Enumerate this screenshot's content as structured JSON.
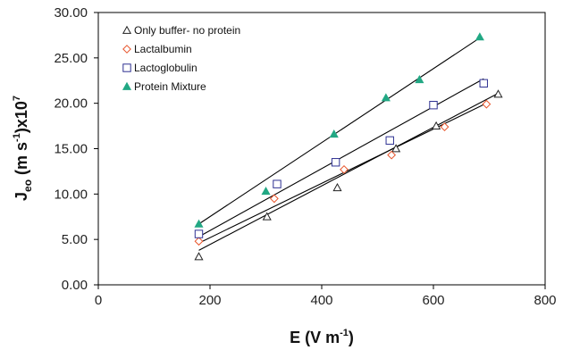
{
  "chart_data": {
    "type": "scatter",
    "xlabel": {
      "main": "E (V m",
      "sup": "-1",
      "tail": ")"
    },
    "ylabel": {
      "j": "J",
      "sub": "eo",
      "mid": " (m s",
      "sup1": "-1",
      "tail": ")x10",
      "sup2": "7"
    },
    "xlim": [
      0,
      800
    ],
    "ylim": [
      0,
      30
    ],
    "x_ticks": [
      0,
      200,
      400,
      600,
      800
    ],
    "x_tick_labels": [
      "0",
      "200",
      "400",
      "600",
      "800"
    ],
    "y_ticks": [
      0,
      5,
      10,
      15,
      20,
      25,
      30
    ],
    "y_tick_labels": [
      "0.00",
      "5.00",
      "10.00",
      "15.00",
      "20.00",
      "25.00",
      "30.00"
    ],
    "grid": false,
    "legend_position": "top-left",
    "series": [
      {
        "name": "Only buffer- no protein",
        "marker": "triangle-open",
        "color": "#222222",
        "x": [
          180,
          302,
          428,
          533,
          605,
          716
        ],
        "y": [
          3.1,
          7.5,
          10.7,
          15.0,
          17.5,
          21.0
        ],
        "fit": [
          [
            180,
            3.8
          ],
          [
            716,
            21.1
          ]
        ]
      },
      {
        "name": "Lactalbumin",
        "marker": "diamond-open",
        "color": "#e8542a",
        "x": [
          180,
          315,
          440,
          525,
          620,
          695
        ],
        "y": [
          4.8,
          9.5,
          12.7,
          14.3,
          17.4,
          19.9
        ],
        "fit": [
          [
            180,
            4.6
          ],
          [
            695,
            20.0
          ]
        ]
      },
      {
        "name": "Lactoglobulin",
        "marker": "square-open",
        "color": "#2e3192",
        "x": [
          180,
          320,
          425,
          522,
          600,
          690
        ],
        "y": [
          5.6,
          11.1,
          13.5,
          15.9,
          19.8,
          22.2
        ],
        "fit": [
          [
            180,
            5.3
          ],
          [
            690,
            22.7
          ]
        ]
      },
      {
        "name": "Protein Mixture",
        "marker": "triangle-filled",
        "color": "#22a884",
        "x": [
          180,
          300,
          422,
          515,
          575,
          683
        ],
        "y": [
          6.7,
          10.3,
          16.6,
          20.6,
          22.6,
          27.3
        ],
        "fit": [
          [
            180,
            6.7
          ],
          [
            683,
            27.2
          ]
        ]
      }
    ]
  }
}
